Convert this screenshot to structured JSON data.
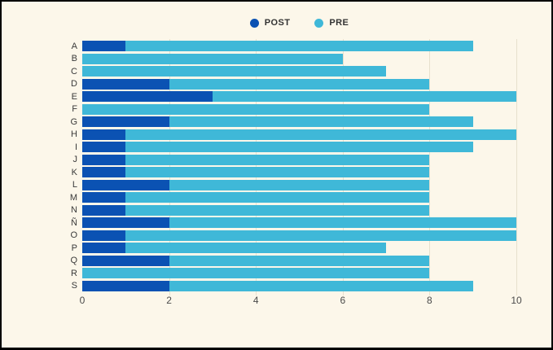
{
  "colors": {
    "background": "#fcf7ea",
    "frame_border": "#000000",
    "gridline": "#e7e0cd",
    "post_series": "#0b52b3",
    "pre_series": "#3fb8d8",
    "label_text": "#3a3a3a",
    "tick_text": "#4a4a4a",
    "legend_text": "#333333"
  },
  "legend": {
    "items": [
      {
        "label": "POST",
        "color": "#0b52b3"
      },
      {
        "label": "PRE",
        "color": "#3fb8d8"
      }
    ]
  },
  "chart_data": {
    "type": "bar",
    "orientation": "horizontal",
    "stacked": true,
    "title": "",
    "xlabel": "",
    "ylabel": "",
    "xlim": [
      0,
      10
    ],
    "x_ticks": [
      0,
      2,
      4,
      6,
      8,
      10
    ],
    "grid": "vertical",
    "legend_position": "top-center",
    "categories": [
      "A",
      "B",
      "C",
      "D",
      "E",
      "F",
      "G",
      "H",
      "I",
      "J",
      "K",
      "L",
      "M",
      "N",
      "Ñ",
      "O",
      "P",
      "Q",
      "R",
      "S"
    ],
    "series": [
      {
        "name": "POST",
        "color": "#0b52b3",
        "values": [
          1,
          0,
          0,
          2,
          3,
          0,
          2,
          1,
          1,
          1,
          1,
          2,
          1,
          1,
          2,
          1,
          1,
          2,
          0,
          2
        ]
      },
      {
        "name": "PRE",
        "color": "#3fb8d8",
        "values": [
          8,
          6,
          7,
          6,
          7,
          8,
          7,
          9,
          8,
          7,
          7,
          6,
          7,
          7,
          8,
          9,
          6,
          6,
          8,
          7
        ]
      }
    ],
    "bar_totals": [
      9,
      6,
      7,
      8,
      10,
      8,
      9,
      10,
      9,
      8,
      8,
      8,
      8,
      8,
      10,
      10,
      7,
      8,
      8,
      9
    ]
  }
}
